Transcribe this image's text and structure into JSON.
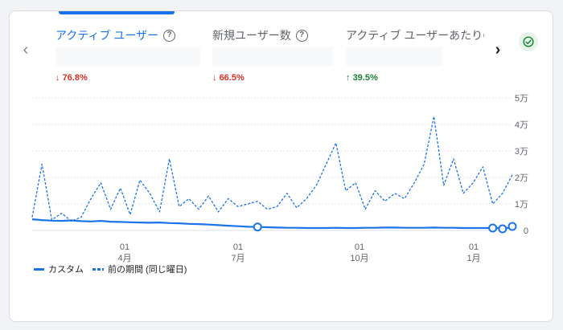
{
  "tabs": [
    {
      "label": "アクティブ ユーザー",
      "active": true,
      "delta": "76.8%",
      "direction": "down"
    },
    {
      "label": "新規ユーザー数",
      "active": false,
      "delta": "66.5%",
      "direction": "down"
    },
    {
      "label": "アクティブ ユーザーあたりの",
      "active": false,
      "delta": "39.5%",
      "direction": "up"
    }
  ],
  "icons": {
    "help": "?",
    "arrow_down": "↓",
    "arrow_up": "↑",
    "nav_left": "‹",
    "nav_right": "›"
  },
  "colors": {
    "accent": "#1a73e8",
    "decrease": "#d93025",
    "increase": "#188038"
  },
  "legend": {
    "series_current": "カスタム",
    "series_previous": "前の期間 (同じ曜日)"
  },
  "chart_data": {
    "type": "line",
    "y_ticks": [
      "5万",
      "4万",
      "3万",
      "2万",
      "1万",
      "0"
    ],
    "y_values": [
      50000,
      40000,
      30000,
      20000,
      10000,
      0
    ],
    "ylim": [
      0,
      50000
    ],
    "x_ticks": [
      {
        "day": "01",
        "month": "4月"
      },
      {
        "day": "01",
        "month": "7月"
      },
      {
        "day": "01",
        "month": "10月"
      },
      {
        "day": "01",
        "month": "1月"
      }
    ],
    "grid": true,
    "series": [
      {
        "name": "カスタム",
        "style": "solid",
        "values": [
          4200,
          3900,
          3700,
          3600,
          3800,
          3500,
          3400,
          3600,
          3300,
          3200,
          3100,
          3000,
          2900,
          3000,
          2800,
          2700,
          2500,
          2400,
          2200,
          2000,
          1800,
          1600,
          1400,
          1300,
          1200,
          1100,
          1000,
          1000,
          900,
          900,
          900,
          1000,
          900,
          900,
          1000,
          1000,
          1100,
          1100,
          1000,
          1000,
          1000,
          1100,
          1000,
          1000,
          900,
          900,
          900,
          900,
          900,
          900
        ]
      },
      {
        "name": "前の期間 (同じ曜日)",
        "style": "dashed",
        "values": [
          5000,
          25000,
          4000,
          6500,
          3500,
          5000,
          12000,
          18000,
          8000,
          16000,
          6000,
          19000,
          14000,
          7000,
          27000,
          9000,
          12000,
          8000,
          13000,
          7000,
          12000,
          9000,
          10000,
          11000,
          8000,
          9000,
          14000,
          8500,
          12000,
          17000,
          25000,
          33000,
          15000,
          18000,
          8000,
          15000,
          11000,
          14000,
          12000,
          18000,
          25000,
          43000,
          17000,
          27000,
          14000,
          18000,
          24000,
          10000,
          14000,
          21000
        ]
      }
    ]
  }
}
